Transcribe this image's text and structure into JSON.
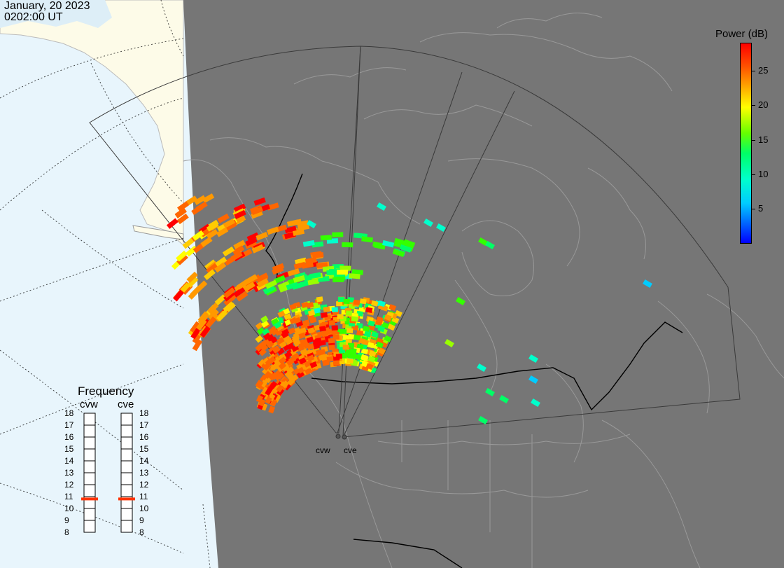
{
  "header": {
    "date": "January, 20 2023",
    "time": "0202:00 UT"
  },
  "colorbar": {
    "title": "Power (dB)",
    "ticks": [
      {
        "value": 5,
        "label": "5"
      },
      {
        "value": 10,
        "label": "10"
      },
      {
        "value": 15,
        "label": "15"
      },
      {
        "value": 20,
        "label": "20"
      },
      {
        "value": 25,
        "label": "25"
      }
    ],
    "range": [
      0,
      29
    ],
    "colors": [
      "#0000ff",
      "#0066ff",
      "#00ccff",
      "#00ffcc",
      "#00ff66",
      "#33ff00",
      "#99ff00",
      "#ffff00",
      "#ffcc00",
      "#ff9900",
      "#ff6600",
      "#ff0000"
    ]
  },
  "frequency_panel": {
    "title": "Frequency",
    "columns": [
      {
        "name": "cvw",
        "selected_mhz": 10.8
      },
      {
        "name": "cve",
        "selected_mhz": 10.8
      }
    ],
    "labels": [
      "18",
      "17",
      "16",
      "15",
      "14",
      "13",
      "12",
      "11",
      "10",
      "9",
      "8"
    ],
    "indicator_color": "#ff3300"
  },
  "radars": [
    {
      "name": "cvw"
    },
    {
      "name": "cve"
    }
  ],
  "map_colors": {
    "night": "#767676",
    "ocean_day": "#e8f5fc",
    "land_day": "#fdfbe8",
    "land_outline": "#999999",
    "fov": "#404040"
  }
}
